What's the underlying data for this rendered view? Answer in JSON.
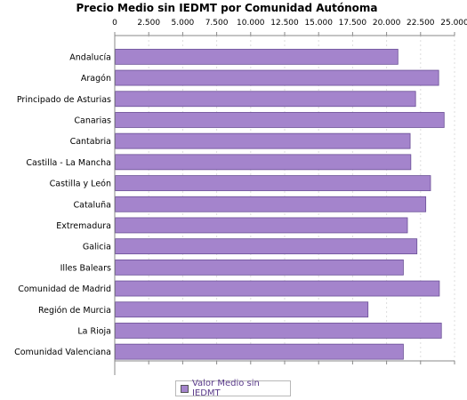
{
  "chart_data": {
    "type": "bar",
    "orientation": "horizontal",
    "title": "Precio Medio sin IEDMT por Comunidad Autónoma",
    "categories": [
      "Andalucía",
      "Aragón",
      "Principado de Asturias",
      "Canarias",
      "Cantabria",
      "Castilla - La Mancha",
      "Castilla y León",
      "Cataluña",
      "Extremadura",
      "Galicia",
      "Illes Balears",
      "Comunidad de Madrid",
      "Región de Murcia",
      "La Rioja",
      "Comunidad Valenciana"
    ],
    "series": [
      {
        "name": "Valor Medio sin IEDMT",
        "values": [
          20800,
          23800,
          22100,
          24200,
          21700,
          21750,
          23200,
          22850,
          21500,
          22200,
          21200,
          23850,
          18600,
          24000,
          21200
        ]
      }
    ],
    "xticks": [
      "0",
      "2.500",
      "5.000",
      "7.500",
      "10.000",
      "12.500",
      "15.000",
      "17.500",
      "20.000",
      "22.500",
      "25.000"
    ],
    "xlim": [
      0,
      25000
    ],
    "grid": true,
    "legend": "bottom",
    "colors": {
      "bar": "#a484cc",
      "bar_edge": "#6a4f96",
      "axis": "#888888",
      "grid": "#dddddd",
      "legend_text": "#5a3a8a"
    }
  }
}
